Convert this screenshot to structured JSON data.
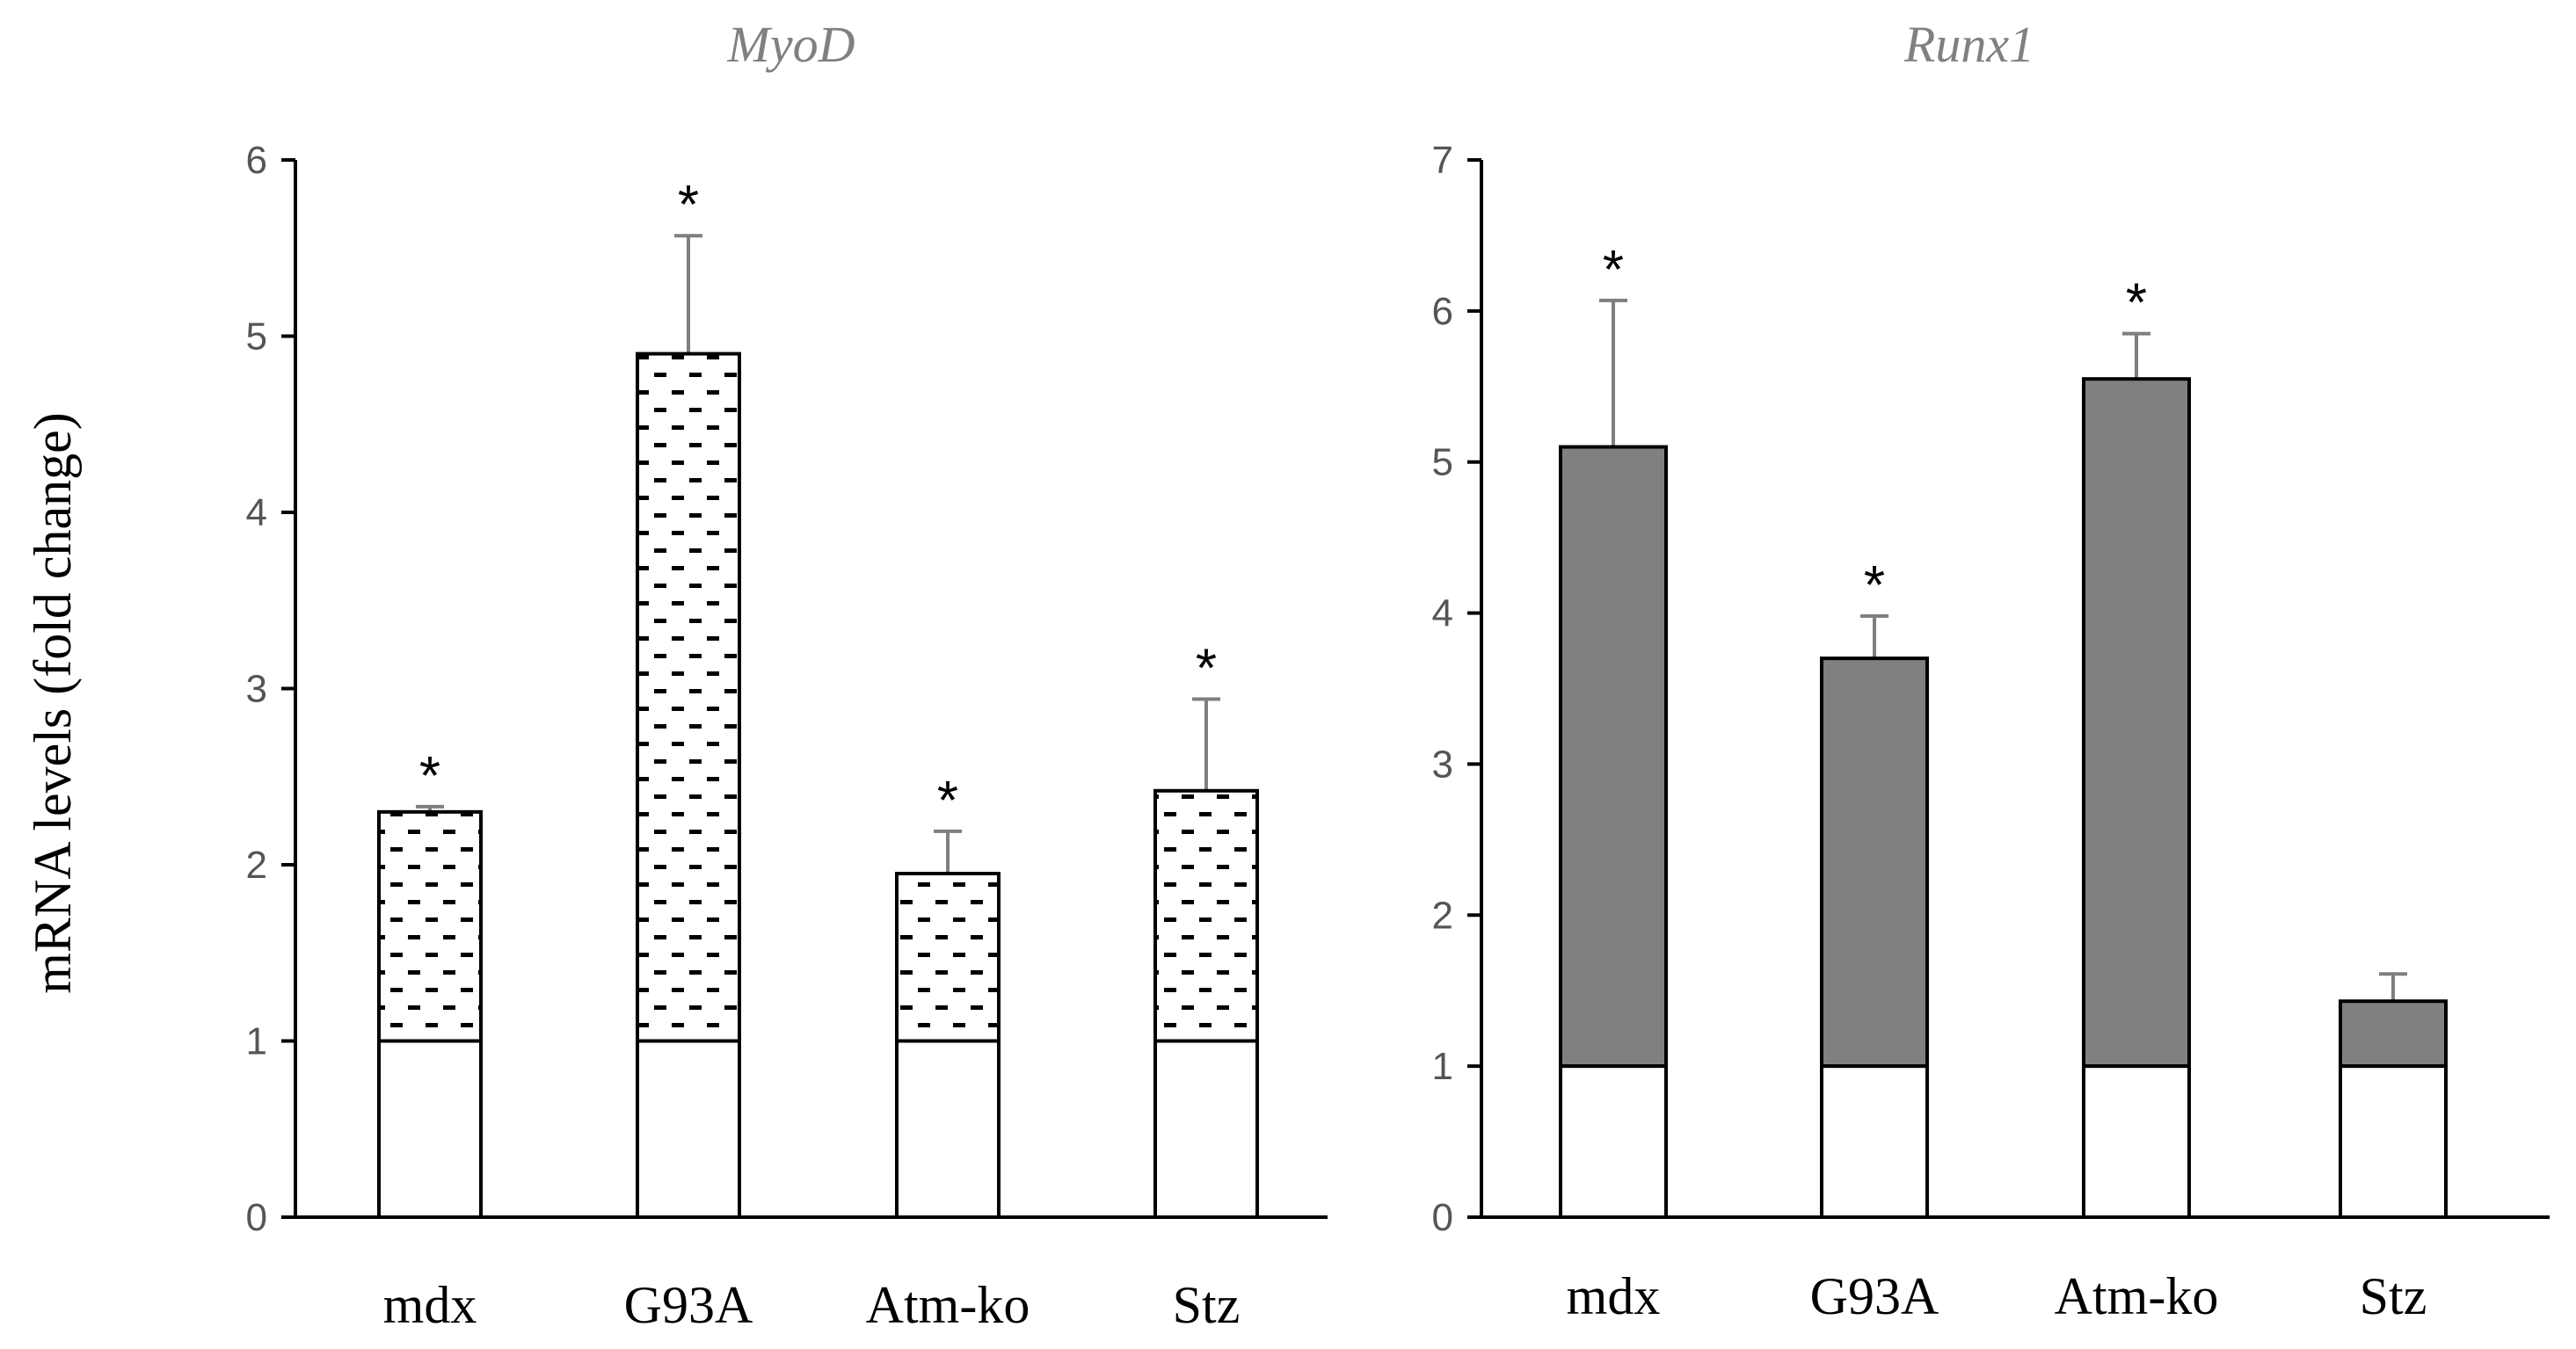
{
  "ylabel": "mRNA levels (fold change)",
  "colors": {
    "axis": "#000000",
    "tick": "#595959",
    "error": "#7f7f7f",
    "runx_fill": "#808080",
    "base_fill": "#ffffff"
  },
  "chart_data": [
    {
      "type": "bar",
      "stacked": true,
      "title": "MyoD",
      "categories": [
        "mdx",
        "G93A",
        "Atm-ko",
        "Stz"
      ],
      "ylim": [
        0,
        6
      ],
      "yticks": [
        0,
        1,
        2,
        3,
        4,
        5,
        6
      ],
      "tick_labels": [
        "0",
        "1",
        "2",
        "3",
        "4",
        "5",
        "6"
      ],
      "baseline": [
        1,
        1,
        1,
        1
      ],
      "values": [
        2.3,
        4.9,
        1.95,
        2.42
      ],
      "errors": [
        0.03,
        0.67,
        0.24,
        0.52
      ],
      "significance": [
        "*",
        "*",
        "*",
        "*"
      ],
      "fill_pattern": "dashes"
    },
    {
      "type": "bar",
      "stacked": true,
      "title": "Runx1",
      "categories": [
        "mdx",
        "G93A",
        "Atm-ko",
        "Stz"
      ],
      "ylim": [
        0,
        7
      ],
      "yticks": [
        0,
        1,
        2,
        3,
        4,
        5,
        6,
        7
      ],
      "tick_labels": [
        "0",
        "1",
        "2",
        "3",
        "4",
        "5",
        "6",
        "7"
      ],
      "baseline": [
        1,
        1,
        1,
        1
      ],
      "values": [
        5.1,
        3.7,
        5.55,
        1.43
      ],
      "errors": [
        0.97,
        0.28,
        0.3,
        0.18
      ],
      "significance": [
        "*",
        "*",
        "*",
        ""
      ],
      "fill_pattern": "solid-gray"
    }
  ]
}
